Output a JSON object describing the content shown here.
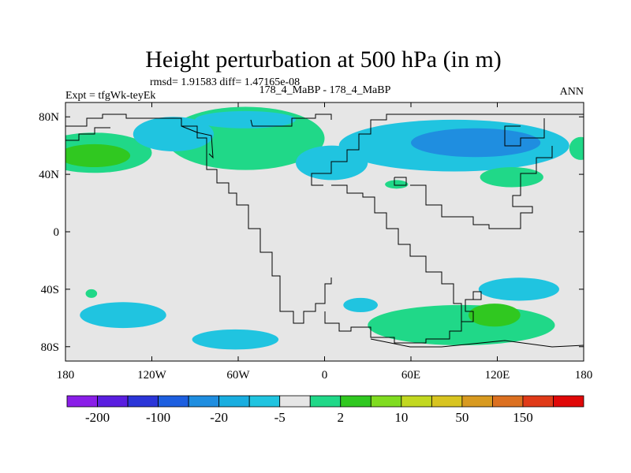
{
  "chart_data": {
    "type": "heatmap",
    "title": "Height perturbation at 500 hPa (in m)",
    "stats": "rmsd= 1.91583 diff= 1.47165e-08",
    "left_label": "Expt = tfgWk-teyEk",
    "center_label": "178_4_MaBP - 178_4_MaBP",
    "right_label": "ANN",
    "x_ticks": [
      "180",
      "120W",
      "60W",
      "0",
      "60E",
      "120E",
      "180"
    ],
    "x_tick_values": [
      -180,
      -120,
      -60,
      0,
      60,
      120,
      180
    ],
    "y_ticks": [
      "80N",
      "40N",
      "0",
      "40S",
      "80S"
    ],
    "y_tick_values": [
      80,
      40,
      0,
      -40,
      -80
    ],
    "xlim": [
      -180,
      180
    ],
    "ylim": [
      -90,
      90
    ],
    "colorbar": {
      "labels": [
        "-200",
        "-100",
        "-20",
        "-5",
        "2",
        "10",
        "50",
        "150"
      ],
      "colors": [
        "#8a1ee8",
        "#5a1ee0",
        "#2b35d8",
        "#1d5fe0",
        "#1f8ee0",
        "#19aee0",
        "#20c4e0",
        "#e6e6e6",
        "#20d888",
        "#30c820",
        "#80dc20",
        "#c2d820",
        "#d8c420",
        "#d89a20",
        "#dc7020",
        "#e03a18",
        "#e00808"
      ]
    },
    "regions": [
      {
        "name": "n-atlantic-east-pos",
        "lon": -45,
        "lat": 62,
        "dlon": 35,
        "dlat": 18,
        "level": "10"
      },
      {
        "name": "n-atlantic-pos",
        "lon": -55,
        "lat": 65,
        "dlon": 55,
        "dlat": 22,
        "level": "2"
      },
      {
        "name": "n-pacific-pos",
        "lon": -160,
        "lat": 55,
        "dlon": 40,
        "dlat": 14,
        "level": "2"
      },
      {
        "name": "n-pacific-core-pos",
        "lon": -160,
        "lat": 53,
        "dlon": 25,
        "dlat": 8,
        "level": "10"
      },
      {
        "name": "arctic-canada-neg",
        "lon": -105,
        "lat": 68,
        "dlon": 28,
        "dlat": 12,
        "level": "-5"
      },
      {
        "name": "eurasia-neg",
        "lon": 90,
        "lat": 60,
        "dlon": 80,
        "dlat": 18,
        "level": "-5"
      },
      {
        "name": "siberia-core-neg",
        "lon": 105,
        "lat": 62,
        "dlon": 45,
        "dlat": 10,
        "level": "-20"
      },
      {
        "name": "europe-trough-neg",
        "lon": 5,
        "lat": 48,
        "dlon": 25,
        "dlat": 12,
        "level": "-5"
      },
      {
        "name": "n-atlantic-polar-neg",
        "lon": -55,
        "lat": 78,
        "dlon": 35,
        "dlat": 6,
        "level": "-5"
      },
      {
        "name": "n-pacific-east-pos",
        "lon": 130,
        "lat": 38,
        "dlon": 22,
        "dlat": 7,
        "level": "2"
      },
      {
        "name": "mediterranean-pos",
        "lon": 50,
        "lat": 33,
        "dlon": 8,
        "dlat": 3,
        "level": "2"
      },
      {
        "name": "pacific-dateline-pos",
        "lon": 178,
        "lat": 58,
        "dlon": 8,
        "dlat": 8,
        "level": "2"
      },
      {
        "name": "s-indian-pos",
        "lon": 95,
        "lat": -65,
        "dlon": 65,
        "dlat": 14,
        "level": "2"
      },
      {
        "name": "s-indian-core-pos",
        "lon": 118,
        "lat": -58,
        "dlon": 18,
        "dlat": 8,
        "level": "10"
      },
      {
        "name": "s-pacific-neg",
        "lon": -140,
        "lat": -58,
        "dlon": 30,
        "dlat": 9,
        "level": "-5"
      },
      {
        "name": "s-pacific-south-neg",
        "lon": -62,
        "lat": -75,
        "dlon": 30,
        "dlat": 7,
        "level": "-5"
      },
      {
        "name": "s-atlantic-neg",
        "lon": 25,
        "lat": -51,
        "dlon": 12,
        "dlat": 5,
        "level": "-5"
      },
      {
        "name": "s-indian-east-neg",
        "lon": 135,
        "lat": -40,
        "dlon": 28,
        "dlat": 8,
        "level": "-5"
      },
      {
        "name": "s-pacific-west-pos",
        "lon": -162,
        "lat": -43,
        "dlon": 4,
        "dlat": 3,
        "level": "2"
      }
    ]
  }
}
